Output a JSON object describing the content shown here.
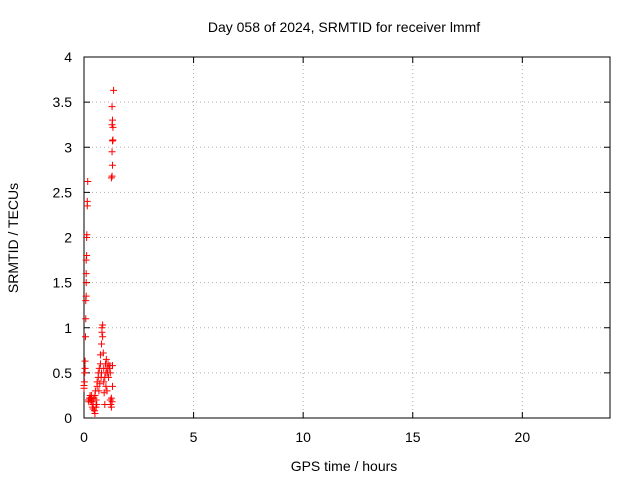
{
  "chart_data": {
    "type": "scatter",
    "title": "Day 058 of 2024, SRMTID for receiver lmmf",
    "xlabel": "GPS time / hours",
    "ylabel": "SRMTID / TECUs",
    "xlim": [
      0,
      24
    ],
    "ylim": [
      0,
      4
    ],
    "x_ticks": [
      0,
      5,
      10,
      15,
      20
    ],
    "x_tick_labels": [
      "0",
      "5",
      "10",
      "15",
      "20"
    ],
    "y_ticks": [
      0,
      0.5,
      1,
      1.5,
      2,
      2.5,
      3,
      3.5,
      4
    ],
    "y_tick_labels": [
      "0",
      "0.5",
      "1",
      "1.5",
      "2",
      "2.5",
      "3",
      "3.5",
      "4"
    ],
    "grid": true,
    "marker": "+",
    "point_color": "#ff0000",
    "series": [
      {
        "points": [
          [
            0.0,
            0.33
          ],
          [
            0.0,
            0.36
          ],
          [
            0.02,
            0.4
          ],
          [
            0.03,
            0.5
          ],
          [
            0.05,
            0.55
          ],
          [
            0.05,
            0.63
          ],
          [
            0.07,
            0.9
          ],
          [
            0.08,
            1.1
          ],
          [
            0.08,
            1.3
          ],
          [
            0.1,
            1.35
          ],
          [
            0.1,
            1.5
          ],
          [
            0.1,
            1.6
          ],
          [
            0.1,
            1.75
          ],
          [
            0.12,
            1.8
          ],
          [
            0.12,
            2.0
          ],
          [
            0.13,
            2.03
          ],
          [
            0.15,
            2.35
          ],
          [
            0.15,
            2.4
          ],
          [
            0.17,
            2.62
          ],
          [
            0.2,
            0.2
          ],
          [
            0.22,
            0.18
          ],
          [
            0.25,
            0.22
          ],
          [
            0.28,
            0.25
          ],
          [
            0.3,
            0.2
          ],
          [
            0.32,
            0.22
          ],
          [
            0.35,
            0.18
          ],
          [
            0.35,
            0.25
          ],
          [
            0.38,
            0.12
          ],
          [
            0.4,
            0.2
          ],
          [
            0.42,
            0.15
          ],
          [
            0.42,
            0.1
          ],
          [
            0.45,
            0.22
          ],
          [
            0.48,
            0.08
          ],
          [
            0.5,
            0.25
          ],
          [
            0.5,
            0.05
          ],
          [
            0.52,
            0.3
          ],
          [
            0.55,
            0.12
          ],
          [
            0.55,
            0.2
          ],
          [
            0.58,
            0.15
          ],
          [
            0.6,
            0.35
          ],
          [
            0.6,
            0.4
          ],
          [
            0.65,
            0.45
          ],
          [
            0.65,
            0.5
          ],
          [
            0.68,
            0.3
          ],
          [
            0.7,
            0.55
          ],
          [
            0.72,
            0.38
          ],
          [
            0.75,
            0.6
          ],
          [
            0.75,
            0.7
          ],
          [
            0.78,
            0.45
          ],
          [
            0.8,
            0.5
          ],
          [
            0.8,
            0.82
          ],
          [
            0.82,
            0.95
          ],
          [
            0.82,
            1.0
          ],
          [
            0.85,
            1.03
          ],
          [
            0.85,
            0.9
          ],
          [
            0.88,
            0.72
          ],
          [
            0.9,
            0.55
          ],
          [
            0.9,
            0.4
          ],
          [
            0.92,
            0.28
          ],
          [
            0.95,
            0.15
          ],
          [
            0.95,
            0.45
          ],
          [
            0.98,
            0.6
          ],
          [
            1.0,
            0.5
          ],
          [
            1.0,
            0.35
          ],
          [
            1.02,
            0.65
          ],
          [
            1.05,
            0.55
          ],
          [
            1.05,
            0.3
          ],
          [
            1.08,
            0.5
          ],
          [
            1.1,
            0.6
          ],
          [
            1.12,
            0.45
          ],
          [
            1.15,
            0.55
          ],
          [
            1.18,
            0.58
          ],
          [
            1.2,
            0.5
          ],
          [
            1.2,
            0.2
          ],
          [
            1.22,
            0.15
          ],
          [
            1.25,
            0.12
          ],
          [
            1.25,
            0.22
          ],
          [
            1.28,
            0.18
          ],
          [
            1.3,
            0.35
          ],
          [
            1.3,
            0.58
          ],
          [
            1.25,
            2.66
          ],
          [
            1.28,
            2.68
          ],
          [
            1.3,
            2.8
          ],
          [
            1.28,
            2.95
          ],
          [
            1.3,
            3.07
          ],
          [
            1.32,
            3.08
          ],
          [
            1.28,
            3.25
          ],
          [
            1.3,
            3.3
          ],
          [
            1.32,
            3.22
          ],
          [
            1.28,
            3.45
          ],
          [
            1.35,
            3.63
          ]
        ]
      }
    ]
  }
}
